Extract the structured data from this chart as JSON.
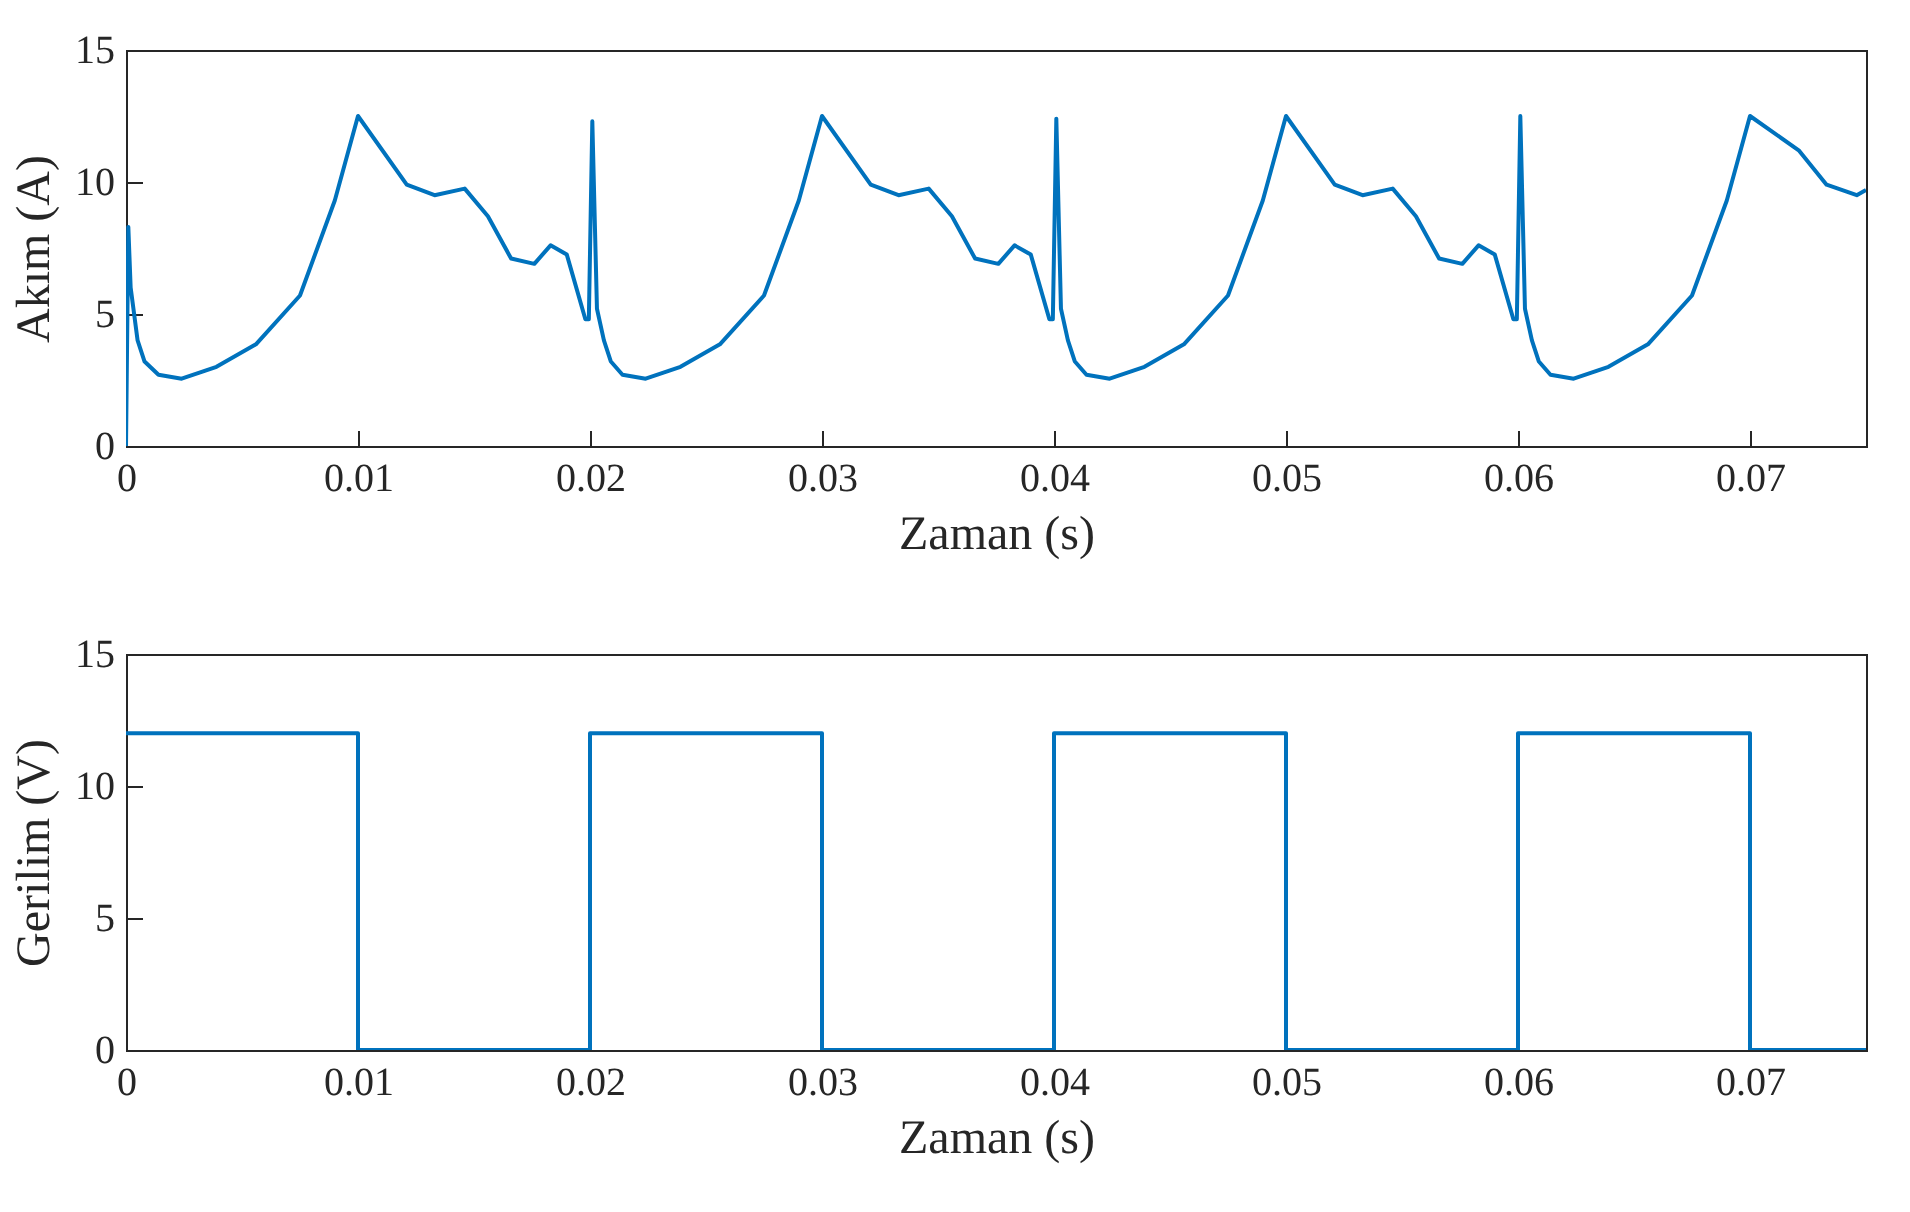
{
  "chart_data": [
    {
      "type": "line",
      "xlabel": "Zaman (s)",
      "ylabel": "Akım (A)",
      "xlim": [
        0,
        0.075
      ],
      "ylim": [
        0,
        15
      ],
      "xticks": [
        0,
        0.01,
        0.02,
        0.03,
        0.04,
        0.05,
        0.06,
        0.07
      ],
      "yticks": [
        0,
        5,
        10,
        15
      ],
      "grid": false,
      "series": [
        {
          "color": "#0072bd",
          "x": [
            0,
            0.0001,
            0.0002,
            0.0005,
            0.0008,
            0.0014,
            0.0024,
            0.0039,
            0.0056,
            0.0075,
            0.009,
            0.01,
            0.0121,
            0.0133,
            0.0146,
            0.0156,
            0.0166,
            0.0176,
            0.0183,
            0.019,
            0.0198,
            0.01995,
            0.0201,
            0.0203,
            0.0206,
            0.0209,
            0.0214,
            0.0224,
            0.0239,
            0.0256,
            0.0275,
            0.029,
            0.03,
            0.0321,
            0.0333,
            0.0346,
            0.0356,
            0.0366,
            0.0376,
            0.0383,
            0.039,
            0.0398,
            0.03995,
            0.0401,
            0.0403,
            0.0406,
            0.0409,
            0.0414,
            0.0424,
            0.0439,
            0.0456,
            0.0475,
            0.049,
            0.05,
            0.0521,
            0.0533,
            0.0546,
            0.0556,
            0.0566,
            0.0576,
            0.0583,
            0.059,
            0.0598,
            0.05995,
            0.0601,
            0.0603,
            0.0606,
            0.0609,
            0.0614,
            0.0624,
            0.0639,
            0.0656,
            0.0675,
            0.069,
            0.07,
            0.0721,
            0.0733,
            0.0746,
            0.075
          ],
          "values": [
            0,
            8.3,
            6.0,
            4.0,
            3.2,
            2.7,
            2.55,
            3.0,
            3.85,
            5.7,
            9.3,
            12.5,
            9.9,
            9.5,
            9.75,
            8.7,
            7.1,
            6.9,
            7.6,
            7.25,
            4.8,
            4.8,
            12.3,
            5.2,
            4.0,
            3.2,
            2.7,
            2.55,
            3.0,
            3.85,
            5.7,
            9.3,
            12.5,
            9.9,
            9.5,
            9.75,
            8.7,
            7.1,
            6.9,
            7.6,
            7.25,
            4.8,
            4.8,
            12.4,
            5.2,
            4.0,
            3.2,
            2.7,
            2.55,
            3.0,
            3.85,
            5.7,
            9.3,
            12.5,
            9.9,
            9.5,
            9.75,
            8.7,
            7.1,
            6.9,
            7.6,
            7.25,
            4.8,
            4.8,
            12.5,
            5.2,
            4.0,
            3.2,
            2.7,
            2.55,
            3.0,
            3.85,
            5.7,
            9.3,
            12.5,
            11.2,
            9.9,
            9.5,
            9.7
          ]
        }
      ]
    },
    {
      "type": "step",
      "xlabel": "Zaman (s)",
      "ylabel": "Gerilim (V)",
      "xlim": [
        0,
        0.075
      ],
      "ylim": [
        0,
        15
      ],
      "xticks": [
        0,
        0.01,
        0.02,
        0.03,
        0.04,
        0.05,
        0.06,
        0.07
      ],
      "yticks": [
        0,
        5,
        10,
        15
      ],
      "grid": false,
      "series": [
        {
          "color": "#0072bd",
          "x": [
            0,
            0.01,
            0.02,
            0.03,
            0.04,
            0.05,
            0.06,
            0.07,
            0.075
          ],
          "values": [
            12,
            0,
            12,
            0,
            12,
            0,
            12,
            0,
            0
          ]
        }
      ]
    }
  ]
}
